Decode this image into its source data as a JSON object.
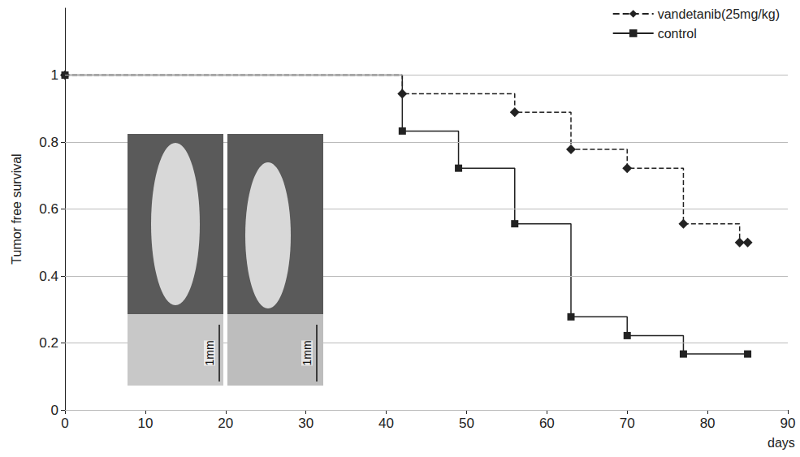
{
  "chart_data": {
    "type": "line",
    "xlabel": "days",
    "ylabel": "Tumor free survival",
    "xlim": [
      0,
      90
    ],
    "xticks": [
      0,
      10,
      20,
      30,
      40,
      50,
      60,
      70,
      80,
      90
    ],
    "ylim": [
      0,
      1.2
    ],
    "yticks": [
      0,
      0.2,
      0.4,
      0.6,
      0.8,
      1
    ],
    "grid": true,
    "legend": "top-right",
    "annotations": [
      {
        "text": "1mm"
      },
      {
        "text": "1mm"
      }
    ],
    "series": [
      {
        "name": "vandetanib(25mg/kg)",
        "color": "#222222",
        "marker": "diamond",
        "line_style": "dashed",
        "x": [
          0,
          42,
          56,
          63,
          70,
          77,
          84,
          85
        ],
        "values": [
          1,
          0.944,
          0.889,
          0.778,
          0.722,
          0.556,
          0.5,
          0.5
        ]
      },
      {
        "name": "control",
        "color": "#222222",
        "marker": "square",
        "line_style": "solid",
        "x": [
          0,
          42,
          49,
          56,
          63,
          70,
          77,
          85
        ],
        "values": [
          1,
          0.833,
          0.722,
          0.556,
          0.278,
          0.222,
          0.167,
          0.167
        ]
      }
    ]
  }
}
